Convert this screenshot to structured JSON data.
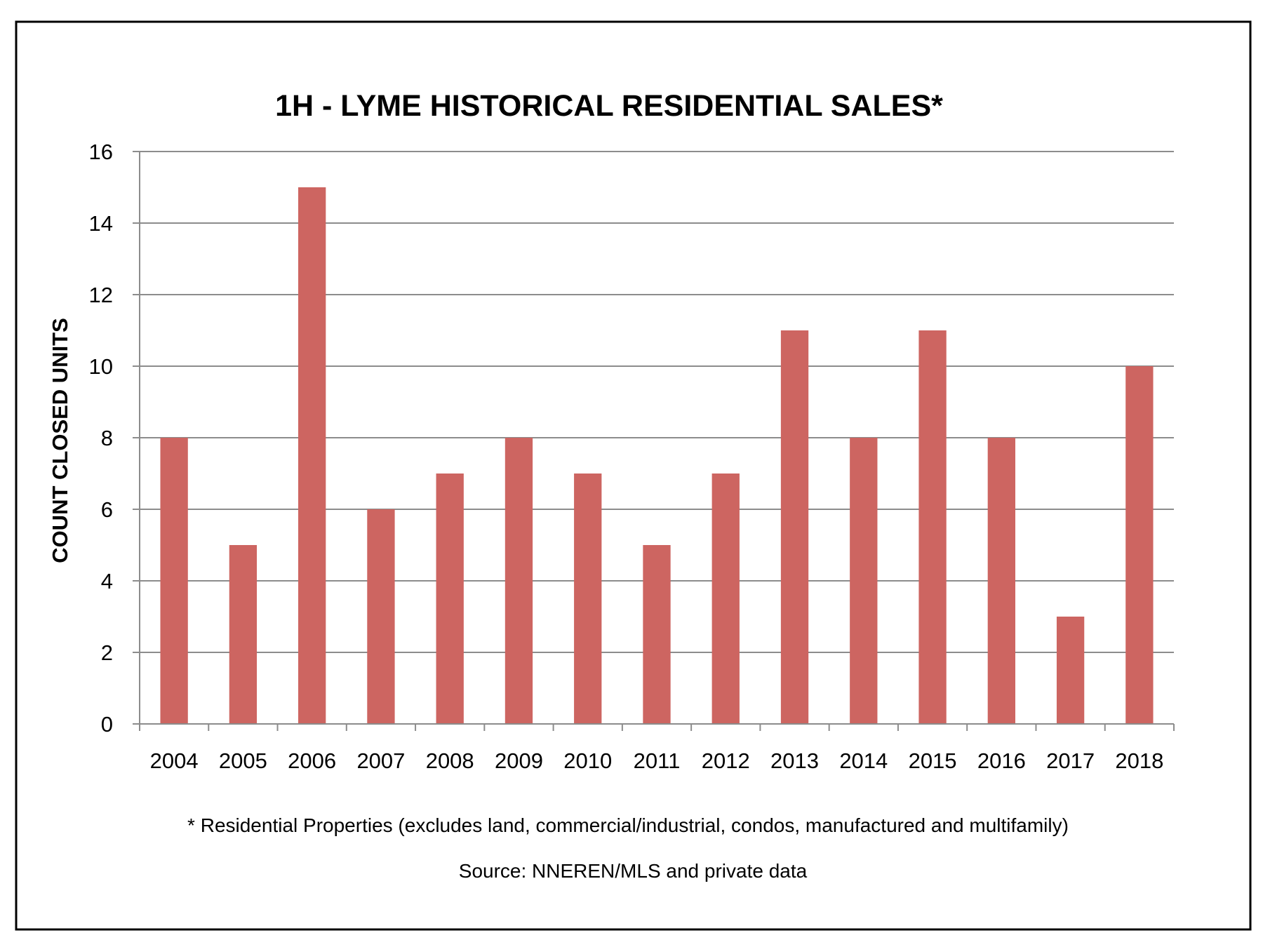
{
  "chart_data": {
    "type": "bar",
    "title": "1H - LYME HISTORICAL RESIDENTIAL SALES*",
    "xlabel": "",
    "ylabel": "COUNT CLOSED UNITS",
    "categories": [
      "2004",
      "2005",
      "2006",
      "2007",
      "2008",
      "2009",
      "2010",
      "2011",
      "2012",
      "2013",
      "2014",
      "2015",
      "2016",
      "2017",
      "2018"
    ],
    "values": [
      8,
      5,
      15,
      6,
      7,
      8,
      7,
      5,
      7,
      11,
      8,
      11,
      8,
      3,
      10
    ],
    "ylim": [
      0,
      16
    ],
    "yticks": [
      "0",
      "2",
      "4",
      "6",
      "8",
      "10",
      "12",
      "14",
      "16"
    ],
    "grid": true,
    "legend": "none",
    "bar_color": "#cd6561",
    "footnote": "* Residential Properties (excludes land, commercial/industrial, condos, manufactured and multifamily)",
    "source": "Source: NNEREN/MLS and private data"
  }
}
